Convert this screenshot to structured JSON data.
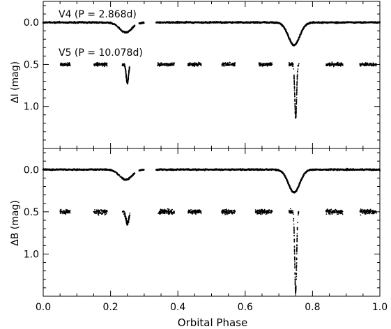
{
  "chart_data": [
    {
      "type": "scatter",
      "panel": "top",
      "xlabel": "",
      "ylabel": "ΔI (mag)",
      "xlim": [
        0.0,
        1.0
      ],
      "ylim": [
        1.5,
        -0.25
      ],
      "y_inverted": true,
      "grid": false,
      "x_ticks": [
        "0.0",
        "0.2",
        "0.4",
        "0.6",
        "0.8",
        "1.0"
      ],
      "y_ticks": [
        "0.0",
        "0.5",
        "1.0"
      ],
      "annotations": [
        "V4 (P = 2.868d)",
        "V5 (P = 10.078d)"
      ],
      "series": [
        {
          "star": "V4",
          "period_days": 2.868,
          "baseline": 0.0,
          "eclipses": [
            {
              "phase": 0.245,
              "depth": 0.12,
              "width": 0.026
            },
            {
              "phase": 0.745,
              "depth": 0.27,
              "width": 0.024
            }
          ],
          "gaps": [
            [
              0.27,
              0.33
            ],
            [
              0.28,
              0.31
            ]
          ]
        },
        {
          "star": "V5",
          "period_days": 10.078,
          "baseline": 0.5,
          "observed_phase_ranges": [
            [
              0.05,
              0.08
            ],
            [
              0.15,
              0.19
            ],
            [
              0.235,
              0.255
            ],
            [
              0.34,
              0.39
            ],
            [
              0.43,
              0.47
            ],
            [
              0.53,
              0.57
            ],
            [
              0.64,
              0.68
            ],
            [
              0.73,
              0.76
            ],
            [
              0.84,
              0.89
            ],
            [
              0.94,
              0.99
            ]
          ],
          "eclipses": [
            {
              "phase": 0.25,
              "depth": 0.22,
              "width": 0.005
            },
            {
              "phase": 0.75,
              "depth": 0.63,
              "width": 0.004
            }
          ]
        }
      ]
    },
    {
      "type": "scatter",
      "panel": "bottom",
      "xlabel": "Orbital Phase",
      "ylabel": "ΔB (mag)",
      "xlim": [
        0.0,
        1.0
      ],
      "ylim": [
        1.5,
        -0.25
      ],
      "y_inverted": true,
      "grid": false,
      "x_ticks": [
        "0.0",
        "0.2",
        "0.4",
        "0.6",
        "0.8",
        "1.0"
      ],
      "y_ticks": [
        "0.0",
        "0.5",
        "1.0"
      ],
      "series": [
        {
          "star": "V4",
          "baseline": 0.0,
          "eclipses": [
            {
              "phase": 0.245,
              "depth": 0.12,
              "width": 0.026
            },
            {
              "phase": 0.745,
              "depth": 0.27,
              "width": 0.024
            }
          ]
        },
        {
          "star": "V5",
          "baseline": 0.5,
          "observed_phase_ranges": [
            [
              0.05,
              0.08
            ],
            [
              0.15,
              0.19
            ],
            [
              0.235,
              0.255
            ],
            [
              0.34,
              0.39
            ],
            [
              0.43,
              0.47
            ],
            [
              0.53,
              0.57
            ],
            [
              0.63,
              0.68
            ],
            [
              0.73,
              0.76
            ],
            [
              0.84,
              0.89
            ],
            [
              0.94,
              0.99
            ]
          ],
          "eclipses": [
            {
              "phase": 0.25,
              "depth": 0.14,
              "width": 0.006
            },
            {
              "phase": 0.75,
              "depth": 0.95,
              "width": 0.004
            }
          ]
        }
      ]
    }
  ]
}
